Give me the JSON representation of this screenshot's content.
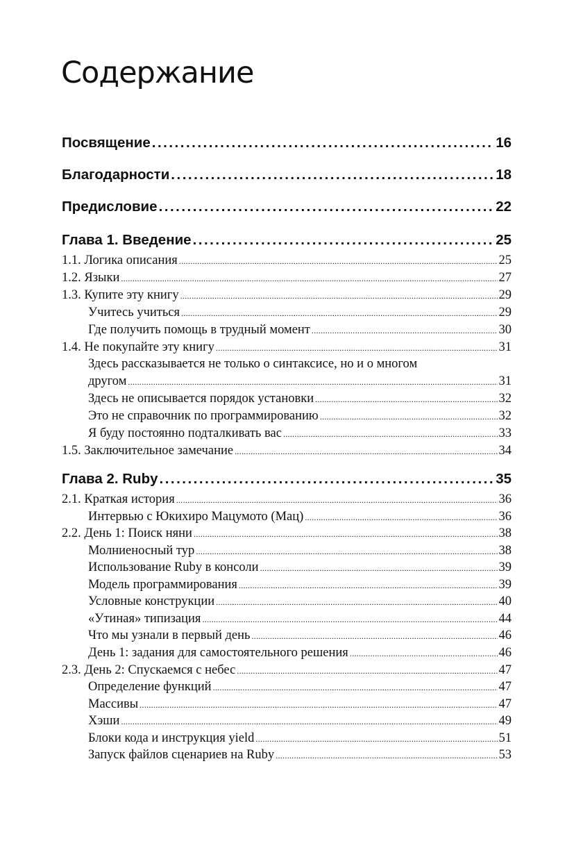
{
  "title": "Содержание",
  "toc": [
    {
      "level": "major",
      "text": "Посвящение",
      "page": "16"
    },
    {
      "level": "major",
      "text": "Благодарности",
      "page": "18"
    },
    {
      "level": "major",
      "text": "Предисловие",
      "page": "22"
    },
    {
      "level": "major",
      "text": "Глава 1. Введение",
      "page": "25"
    },
    {
      "level": "section",
      "text": "1.1. Логика описания",
      "page": "25"
    },
    {
      "level": "section",
      "text": "1.2. Языки",
      "page": "27"
    },
    {
      "level": "section",
      "text": "1.3. Купите эту книгу",
      "page": "29"
    },
    {
      "level": "sub",
      "text": "Учитесь учиться",
      "page": "29"
    },
    {
      "level": "sub",
      "text": "Где получить помощь в трудный момент",
      "page": "30"
    },
    {
      "level": "section",
      "text": "1.4. Не покупайте эту книгу",
      "page": "31"
    },
    {
      "level": "sub",
      "text": "Здесь рассказывается не только о синтаксисе, но и о многом",
      "cont": "другом",
      "page": "31"
    },
    {
      "level": "sub",
      "text": "Здесь не описывается порядок установки",
      "page": "32"
    },
    {
      "level": "sub",
      "text": "Это не справочник по программированию",
      "page": "32"
    },
    {
      "level": "sub",
      "text": "Я буду постоянно подталкивать вас",
      "page": "33"
    },
    {
      "level": "section",
      "text": "1.5. Заключительное замечание",
      "page": "34"
    },
    {
      "level": "major",
      "text": "Глава 2. Ruby",
      "page": "35"
    },
    {
      "level": "section",
      "text": "2.1. Краткая история",
      "page": "36"
    },
    {
      "level": "sub",
      "text": "Интервью с Юкихиро Мацумото (Мац)",
      "page": "36"
    },
    {
      "level": "section",
      "text": "2.2. День 1: Поиск няни",
      "page": "38"
    },
    {
      "level": "sub",
      "text": "Молниеносный тур",
      "page": "38"
    },
    {
      "level": "sub",
      "text": "Использование Ruby в консоли",
      "page": "39"
    },
    {
      "level": "sub",
      "text": "Модель программирования",
      "page": "39"
    },
    {
      "level": "sub",
      "text": "Условные конструкции",
      "page": "40"
    },
    {
      "level": "sub",
      "text": "«Утиная» типизация",
      "page": "44"
    },
    {
      "level": "sub",
      "text": "Что мы узнали в первый день",
      "page": "46"
    },
    {
      "level": "sub",
      "text": "День 1: задания для самостоятельного решения",
      "page": "46"
    },
    {
      "level": "section",
      "text": "2.3. День 2: Спускаемся с небес",
      "page": "47"
    },
    {
      "level": "sub",
      "text": "Определение функций",
      "page": "47"
    },
    {
      "level": "sub",
      "text": "Массивы",
      "page": "47"
    },
    {
      "level": "sub",
      "text": "Хэши",
      "page": "49"
    },
    {
      "level": "sub",
      "text": "Блоки кода и инструкция yield",
      "page": "51"
    },
    {
      "level": "sub",
      "text": "Запуск файлов сценариев на Ruby",
      "page": "53"
    }
  ]
}
